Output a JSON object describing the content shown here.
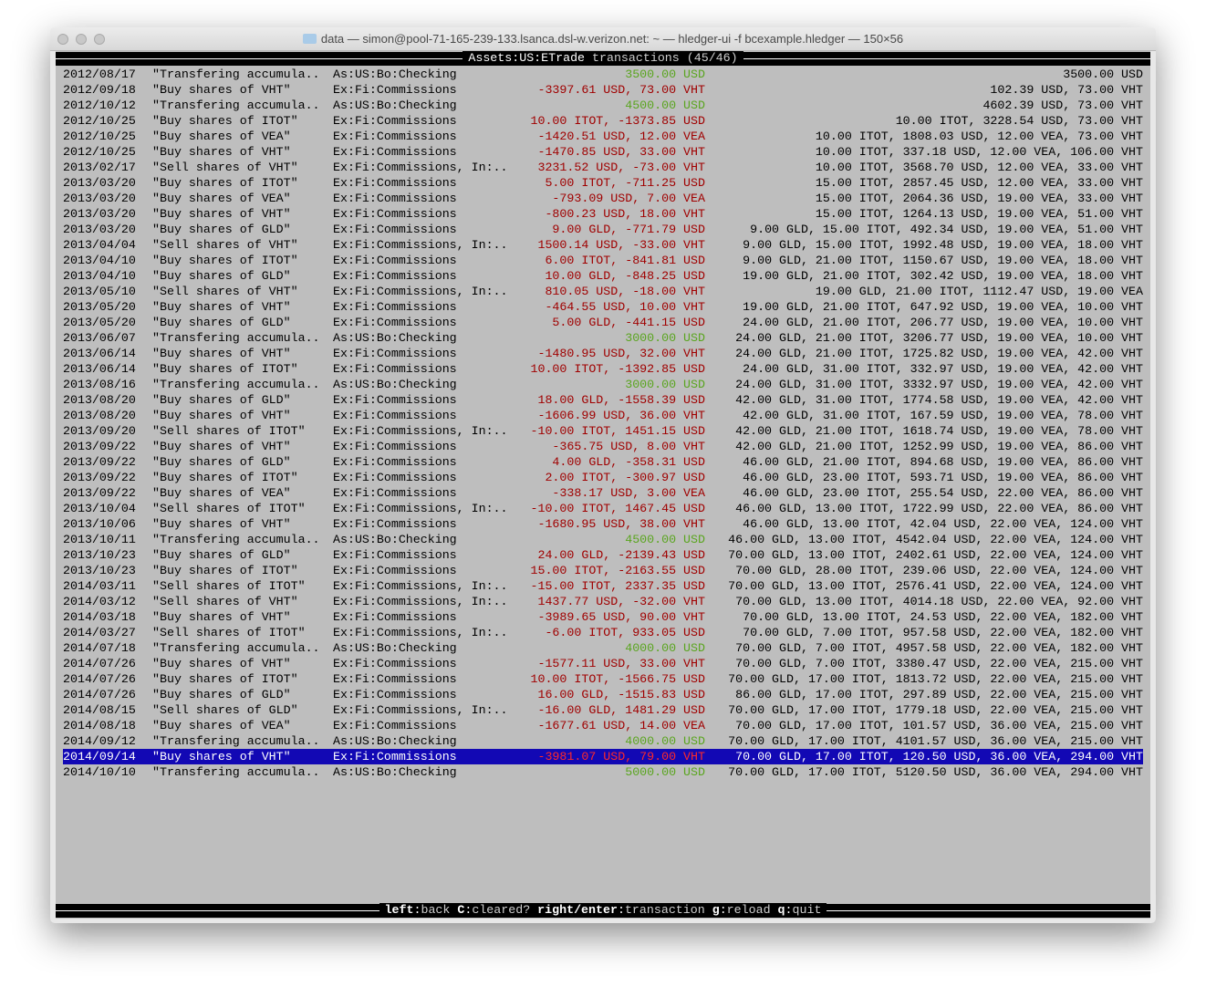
{
  "window": {
    "title": "data — simon@pool-71-165-239-133.lsanca.dsl-w.verizon.net: ~ — hledger-ui -f bcexample.hledger — 150×56"
  },
  "header": {
    "account": "Assets:US:ETrade",
    "label": "transactions",
    "position": "(45/46)"
  },
  "colors": {
    "negative": "#a00000",
    "positive": "#5aa51f",
    "selection": "#1208b4"
  },
  "selected_index": 44,
  "rows": [
    [
      "2012/08/17",
      "\"Transfering accumula..",
      "As:US:Bo:Checking",
      "3500.00 USD",
      "3500.00 USD"
    ],
    [
      "2012/09/18",
      "\"Buy shares of VHT\"",
      "Ex:Fi:Commissions",
      "-3397.61 USD, 73.00 VHT",
      "102.39 USD, 73.00 VHT"
    ],
    [
      "2012/10/12",
      "\"Transfering accumula..",
      "As:US:Bo:Checking",
      "4500.00 USD",
      "4602.39 USD, 73.00 VHT"
    ],
    [
      "2012/10/25",
      "\"Buy shares of ITOT\"",
      "Ex:Fi:Commissions",
      "10.00 ITOT, -1373.85 USD",
      "10.00 ITOT, 3228.54 USD, 73.00 VHT"
    ],
    [
      "2012/10/25",
      "\"Buy shares of VEA\"",
      "Ex:Fi:Commissions",
      "-1420.51 USD, 12.00 VEA",
      "10.00 ITOT, 1808.03 USD, 12.00 VEA, 73.00 VHT"
    ],
    [
      "2012/10/25",
      "\"Buy shares of VHT\"",
      "Ex:Fi:Commissions",
      "-1470.85 USD, 33.00 VHT",
      "10.00 ITOT, 337.18 USD, 12.00 VEA, 106.00 VHT"
    ],
    [
      "2013/02/17",
      "\"Sell shares of VHT\"",
      "Ex:Fi:Commissions, In:..",
      "3231.52 USD, -73.00 VHT",
      "10.00 ITOT, 3568.70 USD, 12.00 VEA, 33.00 VHT"
    ],
    [
      "2013/03/20",
      "\"Buy shares of ITOT\"",
      "Ex:Fi:Commissions",
      "5.00 ITOT, -711.25 USD",
      "15.00 ITOT, 2857.45 USD, 12.00 VEA, 33.00 VHT"
    ],
    [
      "2013/03/20",
      "\"Buy shares of VEA\"",
      "Ex:Fi:Commissions",
      "-793.09 USD, 7.00 VEA",
      "15.00 ITOT, 2064.36 USD, 19.00 VEA, 33.00 VHT"
    ],
    [
      "2013/03/20",
      "\"Buy shares of VHT\"",
      "Ex:Fi:Commissions",
      "-800.23 USD, 18.00 VHT",
      "15.00 ITOT, 1264.13 USD, 19.00 VEA, 51.00 VHT"
    ],
    [
      "2013/03/20",
      "\"Buy shares of GLD\"",
      "Ex:Fi:Commissions",
      "9.00 GLD, -771.79 USD",
      "9.00 GLD, 15.00 ITOT, 492.34 USD, 19.00 VEA, 51.00 VHT"
    ],
    [
      "2013/04/04",
      "\"Sell shares of VHT\"",
      "Ex:Fi:Commissions, In:..",
      "1500.14 USD, -33.00 VHT",
      "9.00 GLD, 15.00 ITOT, 1992.48 USD, 19.00 VEA, 18.00 VHT"
    ],
    [
      "2013/04/10",
      "\"Buy shares of ITOT\"",
      "Ex:Fi:Commissions",
      "6.00 ITOT, -841.81 USD",
      "9.00 GLD, 21.00 ITOT, 1150.67 USD, 19.00 VEA, 18.00 VHT"
    ],
    [
      "2013/04/10",
      "\"Buy shares of GLD\"",
      "Ex:Fi:Commissions",
      "10.00 GLD, -848.25 USD",
      "19.00 GLD, 21.00 ITOT, 302.42 USD, 19.00 VEA, 18.00 VHT"
    ],
    [
      "2013/05/10",
      "\"Sell shares of VHT\"",
      "Ex:Fi:Commissions, In:..",
      "810.05 USD, -18.00 VHT",
      "19.00 GLD, 21.00 ITOT, 1112.47 USD, 19.00 VEA"
    ],
    [
      "2013/05/20",
      "\"Buy shares of VHT\"",
      "Ex:Fi:Commissions",
      "-464.55 USD, 10.00 VHT",
      "19.00 GLD, 21.00 ITOT, 647.92 USD, 19.00 VEA, 10.00 VHT"
    ],
    [
      "2013/05/20",
      "\"Buy shares of GLD\"",
      "Ex:Fi:Commissions",
      "5.00 GLD, -441.15 USD",
      "24.00 GLD, 21.00 ITOT, 206.77 USD, 19.00 VEA, 10.00 VHT"
    ],
    [
      "2013/06/07",
      "\"Transfering accumula..",
      "As:US:Bo:Checking",
      "3000.00 USD",
      "24.00 GLD, 21.00 ITOT, 3206.77 USD, 19.00 VEA, 10.00 VHT"
    ],
    [
      "2013/06/14",
      "\"Buy shares of VHT\"",
      "Ex:Fi:Commissions",
      "-1480.95 USD, 32.00 VHT",
      "24.00 GLD, 21.00 ITOT, 1725.82 USD, 19.00 VEA, 42.00 VHT"
    ],
    [
      "2013/06/14",
      "\"Buy shares of ITOT\"",
      "Ex:Fi:Commissions",
      "10.00 ITOT, -1392.85 USD",
      "24.00 GLD, 31.00 ITOT, 332.97 USD, 19.00 VEA, 42.00 VHT"
    ],
    [
      "2013/08/16",
      "\"Transfering accumula..",
      "As:US:Bo:Checking",
      "3000.00 USD",
      "24.00 GLD, 31.00 ITOT, 3332.97 USD, 19.00 VEA, 42.00 VHT"
    ],
    [
      "2013/08/20",
      "\"Buy shares of GLD\"",
      "Ex:Fi:Commissions",
      "18.00 GLD, -1558.39 USD",
      "42.00 GLD, 31.00 ITOT, 1774.58 USD, 19.00 VEA, 42.00 VHT"
    ],
    [
      "2013/08/20",
      "\"Buy shares of VHT\"",
      "Ex:Fi:Commissions",
      "-1606.99 USD, 36.00 VHT",
      "42.00 GLD, 31.00 ITOT, 167.59 USD, 19.00 VEA, 78.00 VHT"
    ],
    [
      "2013/09/20",
      "\"Sell shares of ITOT\"",
      "Ex:Fi:Commissions, In:..",
      "-10.00 ITOT, 1451.15 USD",
      "42.00 GLD, 21.00 ITOT, 1618.74 USD, 19.00 VEA, 78.00 VHT"
    ],
    [
      "2013/09/22",
      "\"Buy shares of VHT\"",
      "Ex:Fi:Commissions",
      "-365.75 USD, 8.00 VHT",
      "42.00 GLD, 21.00 ITOT, 1252.99 USD, 19.00 VEA, 86.00 VHT"
    ],
    [
      "2013/09/22",
      "\"Buy shares of GLD\"",
      "Ex:Fi:Commissions",
      "4.00 GLD, -358.31 USD",
      "46.00 GLD, 21.00 ITOT, 894.68 USD, 19.00 VEA, 86.00 VHT"
    ],
    [
      "2013/09/22",
      "\"Buy shares of ITOT\"",
      "Ex:Fi:Commissions",
      "2.00 ITOT, -300.97 USD",
      "46.00 GLD, 23.00 ITOT, 593.71 USD, 19.00 VEA, 86.00 VHT"
    ],
    [
      "2013/09/22",
      "\"Buy shares of VEA\"",
      "Ex:Fi:Commissions",
      "-338.17 USD, 3.00 VEA",
      "46.00 GLD, 23.00 ITOT, 255.54 USD, 22.00 VEA, 86.00 VHT"
    ],
    [
      "2013/10/04",
      "\"Sell shares of ITOT\"",
      "Ex:Fi:Commissions, In:..",
      "-10.00 ITOT, 1467.45 USD",
      "46.00 GLD, 13.00 ITOT, 1722.99 USD, 22.00 VEA, 86.00 VHT"
    ],
    [
      "2013/10/06",
      "\"Buy shares of VHT\"",
      "Ex:Fi:Commissions",
      "-1680.95 USD, 38.00 VHT",
      "46.00 GLD, 13.00 ITOT, 42.04 USD, 22.00 VEA, 124.00 VHT"
    ],
    [
      "2013/10/11",
      "\"Transfering accumula..",
      "As:US:Bo:Checking",
      "4500.00 USD",
      "46.00 GLD, 13.00 ITOT, 4542.04 USD, 22.00 VEA, 124.00 VHT"
    ],
    [
      "2013/10/23",
      "\"Buy shares of GLD\"",
      "Ex:Fi:Commissions",
      "24.00 GLD, -2139.43 USD",
      "70.00 GLD, 13.00 ITOT, 2402.61 USD, 22.00 VEA, 124.00 VHT"
    ],
    [
      "2013/10/23",
      "\"Buy shares of ITOT\"",
      "Ex:Fi:Commissions",
      "15.00 ITOT, -2163.55 USD",
      "70.00 GLD, 28.00 ITOT, 239.06 USD, 22.00 VEA, 124.00 VHT"
    ],
    [
      "2014/03/11",
      "\"Sell shares of ITOT\"",
      "Ex:Fi:Commissions, In:..",
      "-15.00 ITOT, 2337.35 USD",
      "70.00 GLD, 13.00 ITOT, 2576.41 USD, 22.00 VEA, 124.00 VHT"
    ],
    [
      "2014/03/12",
      "\"Sell shares of VHT\"",
      "Ex:Fi:Commissions, In:..",
      "1437.77 USD, -32.00 VHT",
      "70.00 GLD, 13.00 ITOT, 4014.18 USD, 22.00 VEA, 92.00 VHT"
    ],
    [
      "2014/03/18",
      "\"Buy shares of VHT\"",
      "Ex:Fi:Commissions",
      "-3989.65 USD, 90.00 VHT",
      "70.00 GLD, 13.00 ITOT, 24.53 USD, 22.00 VEA, 182.00 VHT"
    ],
    [
      "2014/03/27",
      "\"Sell shares of ITOT\"",
      "Ex:Fi:Commissions, In:..",
      "-6.00 ITOT, 933.05 USD",
      "70.00 GLD, 7.00 ITOT, 957.58 USD, 22.00 VEA, 182.00 VHT"
    ],
    [
      "2014/07/18",
      "\"Transfering accumula..",
      "As:US:Bo:Checking",
      "4000.00 USD",
      "70.00 GLD, 7.00 ITOT, 4957.58 USD, 22.00 VEA, 182.00 VHT"
    ],
    [
      "2014/07/26",
      "\"Buy shares of VHT\"",
      "Ex:Fi:Commissions",
      "-1577.11 USD, 33.00 VHT",
      "70.00 GLD, 7.00 ITOT, 3380.47 USD, 22.00 VEA, 215.00 VHT"
    ],
    [
      "2014/07/26",
      "\"Buy shares of ITOT\"",
      "Ex:Fi:Commissions",
      "10.00 ITOT, -1566.75 USD",
      "70.00 GLD, 17.00 ITOT, 1813.72 USD, 22.00 VEA, 215.00 VHT"
    ],
    [
      "2014/07/26",
      "\"Buy shares of GLD\"",
      "Ex:Fi:Commissions",
      "16.00 GLD, -1515.83 USD",
      "86.00 GLD, 17.00 ITOT, 297.89 USD, 22.00 VEA, 215.00 VHT"
    ],
    [
      "2014/08/15",
      "\"Sell shares of GLD\"",
      "Ex:Fi:Commissions, In:..",
      "-16.00 GLD, 1481.29 USD",
      "70.00 GLD, 17.00 ITOT, 1779.18 USD, 22.00 VEA, 215.00 VHT"
    ],
    [
      "2014/08/18",
      "\"Buy shares of VEA\"",
      "Ex:Fi:Commissions",
      "-1677.61 USD, 14.00 VEA",
      "70.00 GLD, 17.00 ITOT, 101.57 USD, 36.00 VEA, 215.00 VHT"
    ],
    [
      "2014/09/12",
      "\"Transfering accumula..",
      "As:US:Bo:Checking",
      "4000.00 USD",
      "70.00 GLD, 17.00 ITOT, 4101.57 USD, 36.00 VEA, 215.00 VHT"
    ],
    [
      "2014/09/14",
      "\"Buy shares of VHT\"",
      "Ex:Fi:Commissions",
      "-3981.07 USD, 79.00 VHT",
      "70.00 GLD, 17.00 ITOT, 120.50 USD, 36.00 VEA, 294.00 VHT"
    ],
    [
      "2014/10/10",
      "\"Transfering accumula..",
      "As:US:Bo:Checking",
      "5000.00 USD",
      "70.00 GLD, 17.00 ITOT, 5120.50 USD, 36.00 VEA, 294.00 VHT"
    ]
  ],
  "footer": {
    "keys": [
      {
        "key": "left",
        "action": "back"
      },
      {
        "key": "C",
        "action": "cleared?"
      },
      {
        "key": "right/enter",
        "action": "transaction"
      },
      {
        "key": "g",
        "action": "reload"
      },
      {
        "key": "q",
        "action": "quit"
      }
    ]
  }
}
